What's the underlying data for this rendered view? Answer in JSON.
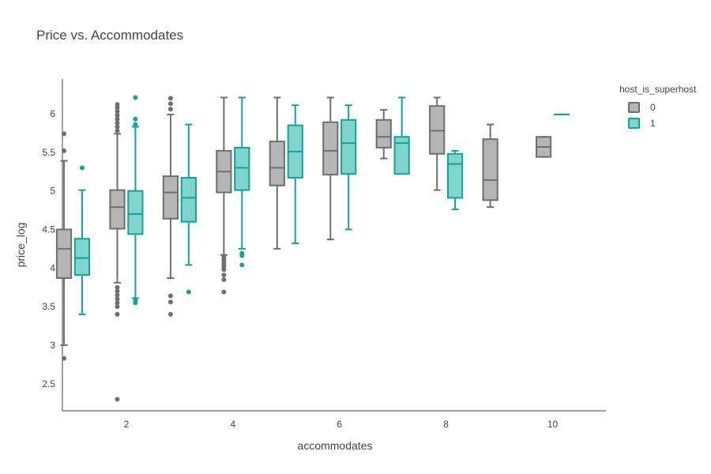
{
  "chart_data": {
    "type": "box",
    "title": "Price vs. Accommodates",
    "xlabel": "accommodates",
    "ylabel": "price_log",
    "xlim": [
      0.8,
      11
    ],
    "ylim": [
      2.15,
      6.45
    ],
    "x_ticks": [
      2,
      4,
      6,
      8,
      10
    ],
    "y_ticks": [
      2.5,
      3,
      3.5,
      4,
      4.5,
      5,
      5.5,
      6
    ],
    "grid": false,
    "legend": {
      "title": "host_is_superhost",
      "placement": "top-right"
    },
    "series": [
      {
        "name": "0",
        "line_color": "#6f6f6f",
        "fill_color": "#b5b5b5",
        "boxes": [
          {
            "x": 1,
            "q1": 3.87,
            "median": 4.25,
            "q3": 4.5,
            "whisker_low": 3.0,
            "whisker_high": 5.39,
            "outliers": [
              2.83,
              5.52,
              5.74
            ]
          },
          {
            "x": 2,
            "q1": 4.51,
            "median": 4.79,
            "q3": 5.01,
            "whisker_low": 3.81,
            "whisker_high": 5.74,
            "outliers": [
              2.3,
              3.4,
              3.5,
              3.55,
              3.6,
              3.65,
              3.7,
              3.75,
              5.78,
              5.83,
              5.88,
              5.93,
              5.98,
              6.03,
              6.08,
              6.12
            ]
          },
          {
            "x": 3,
            "q1": 4.64,
            "median": 4.98,
            "q3": 5.19,
            "whisker_low": 3.87,
            "whisker_high": 5.99,
            "outliers": [
              3.4,
              3.56,
              3.64,
              6.06,
              6.13,
              6.2
            ]
          },
          {
            "x": 4,
            "q1": 4.98,
            "median": 5.25,
            "q3": 5.52,
            "whisker_low": 4.17,
            "whisker_high": 6.21,
            "outliers": [
              3.69,
              3.85,
              3.91,
              3.98,
              4.02,
              4.05,
              4.08,
              4.11,
              4.14
            ]
          },
          {
            "x": 5,
            "q1": 5.07,
            "median": 5.3,
            "q3": 5.64,
            "whisker_low": 4.25,
            "whisker_high": 6.21,
            "outliers": []
          },
          {
            "x": 6,
            "q1": 5.21,
            "median": 5.52,
            "q3": 5.89,
            "whisker_low": 4.37,
            "whisker_high": 6.21,
            "outliers": []
          },
          {
            "x": 7,
            "q1": 5.56,
            "median": 5.7,
            "q3": 5.92,
            "whisker_low": 5.42,
            "whisker_high": 6.05,
            "outliers": []
          },
          {
            "x": 8,
            "q1": 5.48,
            "median": 5.78,
            "q3": 6.1,
            "whisker_low": 5.01,
            "whisker_high": 6.21,
            "outliers": []
          },
          {
            "x": 9,
            "q1": 4.88,
            "median": 5.14,
            "q3": 5.67,
            "whisker_low": 4.79,
            "whisker_high": 5.86,
            "outliers": []
          },
          {
            "x": 10,
            "q1": 5.44,
            "median": 5.57,
            "q3": 5.7,
            "whisker_low": 5.44,
            "whisker_high": 5.7,
            "outliers": []
          }
        ]
      },
      {
        "name": "1",
        "line_color": "#12a39a",
        "fill_color": "#7fd4cc",
        "boxes": [
          {
            "x": 1,
            "q1": 3.91,
            "median": 4.13,
            "q3": 4.38,
            "whisker_low": 3.4,
            "whisker_high": 5.01,
            "outliers": [
              5.3
            ]
          },
          {
            "x": 2,
            "q1": 4.44,
            "median": 4.7,
            "q3": 5.0,
            "whisker_low": 3.61,
            "whisker_high": 5.83,
            "outliers": [
              3.55,
              3.58,
              5.86,
              5.93,
              6.21
            ]
          },
          {
            "x": 3,
            "q1": 4.6,
            "median": 4.91,
            "q3": 5.17,
            "whisker_low": 4.04,
            "whisker_high": 5.86,
            "outliers": [
              3.69
            ]
          },
          {
            "x": 4,
            "q1": 5.01,
            "median": 5.3,
            "q3": 5.56,
            "whisker_low": 4.25,
            "whisker_high": 6.21,
            "outliers": [
              4.04,
              4.16,
              4.19
            ]
          },
          {
            "x": 5,
            "q1": 5.17,
            "median": 5.51,
            "q3": 5.85,
            "whisker_low": 4.32,
            "whisker_high": 6.11,
            "outliers": []
          },
          {
            "x": 6,
            "q1": 5.22,
            "median": 5.62,
            "q3": 5.92,
            "whisker_low": 4.5,
            "whisker_high": 6.11,
            "outliers": []
          },
          {
            "x": 7,
            "q1": 5.22,
            "median": 5.62,
            "q3": 5.7,
            "whisker_low": 5.22,
            "whisker_high": 6.21,
            "outliers": []
          },
          {
            "x": 8,
            "q1": 4.91,
            "median": 5.35,
            "q3": 5.48,
            "whisker_low": 4.76,
            "whisker_high": 5.52,
            "outliers": []
          },
          {
            "x": 10,
            "q1": 5.99,
            "median": 5.99,
            "q3": 5.99,
            "whisker_low": 5.99,
            "whisker_high": 5.99,
            "outliers": []
          }
        ]
      }
    ]
  }
}
